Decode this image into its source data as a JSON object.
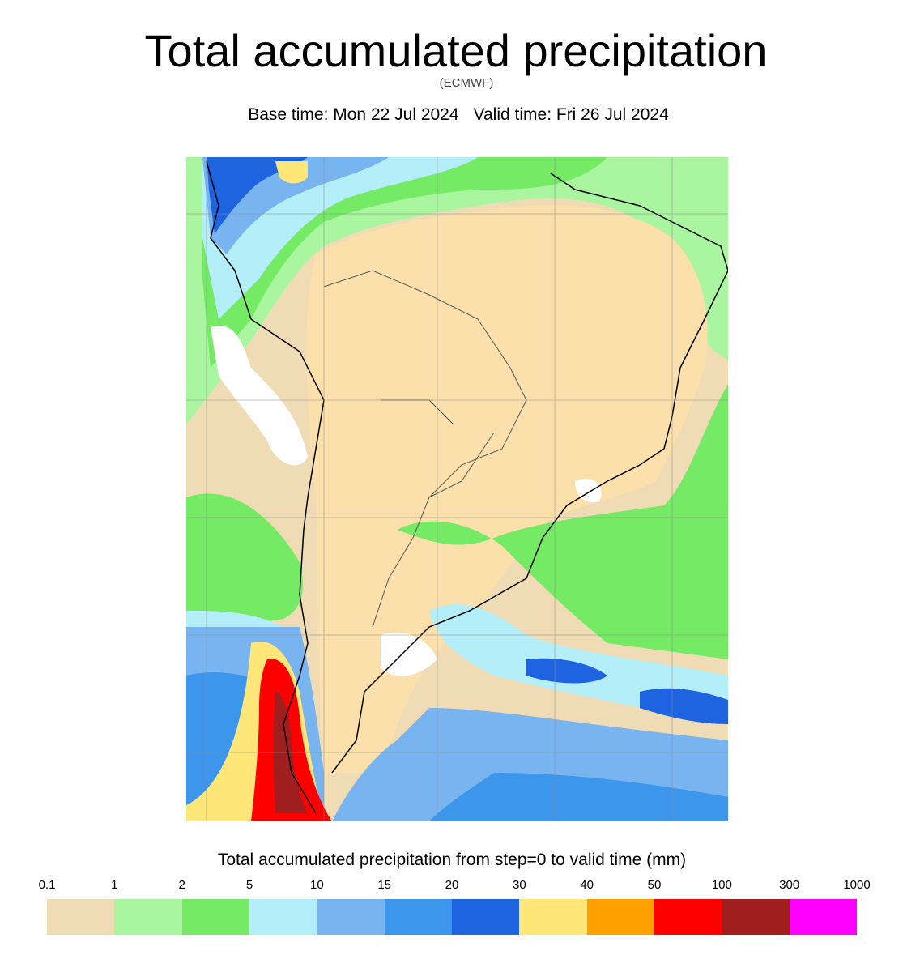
{
  "header": {
    "title": "Total accumulated precipitation",
    "source": "(ECMWF)",
    "base_time": "Base time: Mon 22 Jul 2024",
    "valid_time": "Valid time: Fri 26 Jul 2024"
  },
  "legend": {
    "title": "Total accumulated precipitation from step=0 to valid time (mm)",
    "ticks": [
      "0.1",
      "1",
      "2",
      "5",
      "10",
      "15",
      "20",
      "30",
      "40",
      "50",
      "100",
      "300",
      "1000"
    ],
    "colors": [
      "#f0dcb4",
      "#aaf5a0",
      "#75ea65",
      "#b4eef8",
      "#78b4f0",
      "#3c96ec",
      "#1e64e0",
      "#ffe678",
      "#ffa000",
      "#ff0000",
      "#a01e1e",
      "#ff00ff"
    ]
  },
  "map": {
    "colors": {
      "ocean_dry": "#f5deb3",
      "land_dry": "#fce0ac",
      "dry_white": "#ffffff",
      "border": "#000000",
      "contour": "#6a5acd",
      "gridline": "#8c8c8c"
    }
  }
}
